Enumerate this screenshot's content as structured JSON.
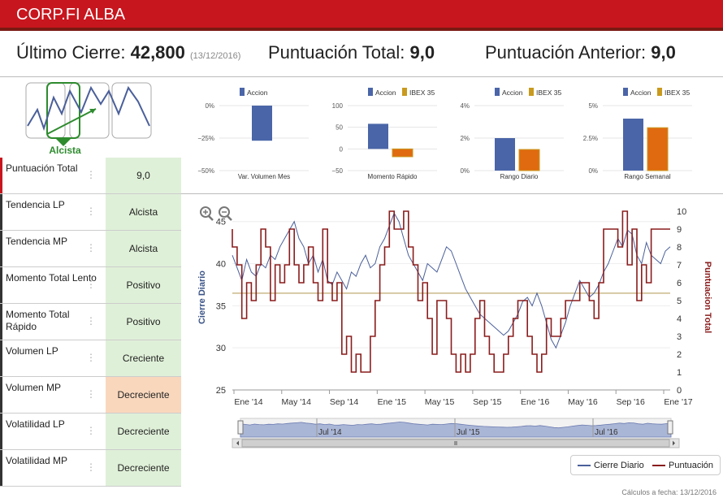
{
  "header": {
    "title": "CORP.FI ALBA"
  },
  "stats": {
    "cierre_label": "Último Cierre:",
    "cierre_value": "42,800",
    "cierre_date": "(13/12/2016)",
    "puntuacion_label": "Puntuación Total:",
    "puntuacion_value": "9,0",
    "anterior_label": "Puntuación Anterior:",
    "anterior_value": "9,0"
  },
  "trend": {
    "label": "Alcista"
  },
  "mini_charts": [
    {
      "legend": [
        "Accion"
      ],
      "ticks": [
        "0%",
        "−25%",
        "−50%"
      ],
      "xlabel": "Var. Volumen Mes",
      "values": [
        -27
      ],
      "ylim": [
        -50,
        0
      ]
    },
    {
      "legend": [
        "Accion",
        "IBEX 35"
      ],
      "ticks": [
        "100",
        "50",
        "0",
        "−50"
      ],
      "xlabel": "Momento Rápido",
      "values": [
        58,
        -18
      ],
      "ylim": [
        -50,
        100
      ]
    },
    {
      "legend": [
        "Accion",
        "IBEX 35"
      ],
      "ticks": [
        "4%",
        "2%",
        "0%"
      ],
      "xlabel": "Rango Diario",
      "values": [
        2.0,
        1.3
      ],
      "ylim": [
        0,
        4
      ]
    },
    {
      "legend": [
        "Accion",
        "IBEX 35"
      ],
      "ticks": [
        "5%",
        "2.5%",
        "0%"
      ],
      "xlabel": "Rango Semanal",
      "values": [
        4.0,
        3.3
      ],
      "ylim": [
        0,
        5
      ]
    }
  ],
  "table": [
    {
      "label": "Puntuación Total",
      "value": "9,0",
      "neg": false
    },
    {
      "label": "Tendencia LP",
      "value": "Alcista",
      "neg": false
    },
    {
      "label": "Tendencia MP",
      "value": "Alcista",
      "neg": false
    },
    {
      "label": "Momento Total Lento",
      "value": "Positivo",
      "neg": false
    },
    {
      "label": "Momento Total Rápido",
      "value": "Positivo",
      "neg": false
    },
    {
      "label": "Volumen LP",
      "value": "Creciente",
      "neg": false
    },
    {
      "label": "Volumen MP",
      "value": "Decreciente",
      "neg": true
    },
    {
      "label": "Volatilidad LP",
      "value": "Decreciente",
      "neg": false
    },
    {
      "label": "Volatilidad MP",
      "value": "Decreciente",
      "neg": false
    }
  ],
  "chart_data": {
    "type": "line",
    "ylabel": "Cierre Diario",
    "y2label": "Puntuacion Total",
    "yticks": [
      "45",
      "40",
      "35",
      "30",
      "25"
    ],
    "y2ticks": [
      "10",
      "9",
      "8",
      "7",
      "6",
      "5",
      "4",
      "3",
      "2",
      "1",
      "0"
    ],
    "xticks": [
      "Ene '14",
      "May '14",
      "Sep '14",
      "Ene '15",
      "May '15",
      "Sep '15",
      "Ene '16",
      "May '16",
      "Sep '16",
      "Ene '17"
    ],
    "navigator_ticks": [
      "Jul '14",
      "Jul '15",
      "Jul '16"
    ],
    "ylim": [
      25,
      47
    ],
    "y2lim": [
      0,
      10
    ],
    "reference_line": 36.5,
    "series": [
      {
        "name": "Cierre Diario",
        "color": "#4a5f9a",
        "values": [
          41,
          39.5,
          38,
          40.5,
          39,
          38.5,
          40,
          39.5,
          41,
          40.5,
          42,
          43,
          44,
          45,
          43,
          42,
          40,
          41,
          39,
          40.5,
          38,
          37.5,
          39,
          38,
          37,
          39,
          38.5,
          40,
          41,
          39.5,
          40,
          42,
          43,
          44.5,
          46,
          45,
          43,
          41,
          40,
          39,
          38,
          40,
          39.5,
          39,
          40.5,
          42,
          41.5,
          40,
          38.5,
          37,
          36,
          35,
          34,
          33.5,
          33,
          32.5,
          32,
          31.5,
          32,
          33,
          34,
          35.5,
          36,
          35,
          36.5,
          35,
          33,
          31,
          30,
          31.5,
          33,
          35,
          36.5,
          38,
          37,
          36,
          36.5,
          37.5,
          39,
          40,
          41.5,
          43,
          42,
          44,
          43.5,
          41,
          40,
          42.5,
          41,
          40.5,
          40,
          41.5,
          42
        ]
      },
      {
        "name": "Puntuación",
        "color": "#8a1c1c",
        "values": [
          9,
          8,
          7,
          4,
          6,
          5,
          7,
          9,
          8,
          5,
          7,
          6,
          7,
          9,
          7,
          6,
          7,
          8,
          6,
          5,
          9,
          6,
          5,
          6,
          2,
          3,
          1,
          2,
          1,
          1,
          3,
          5,
          7,
          8,
          10,
          9,
          9,
          10,
          8,
          7,
          5,
          6,
          4,
          2,
          5,
          5,
          4,
          2,
          1,
          2,
          1,
          2,
          4,
          5,
          3,
          2,
          1,
          1,
          2,
          3,
          4,
          5,
          5,
          3,
          2,
          1,
          2,
          4,
          3,
          3,
          4,
          5,
          5,
          5,
          6,
          6,
          5,
          4,
          6,
          9,
          9,
          9,
          8,
          10,
          7,
          9,
          5,
          7,
          6,
          9,
          9,
          9,
          9
        ]
      }
    ]
  },
  "legend": {
    "cierre": "Cierre Diario",
    "puntuacion": "Puntuación"
  },
  "footer": "Cálculos a fecha: 13/12/2016"
}
